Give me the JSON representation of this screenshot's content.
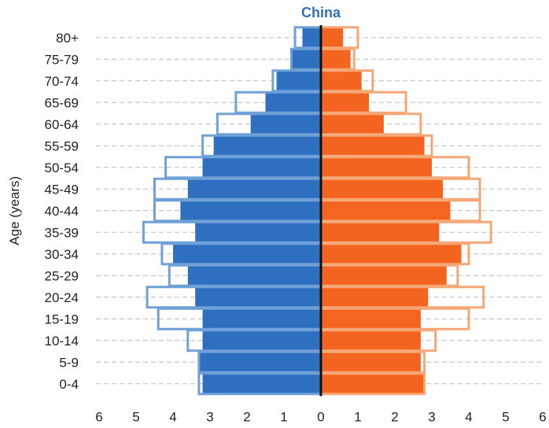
{
  "chart_data": {
    "type": "bar",
    "orientation": "horizontal-population-pyramid",
    "title": "China",
    "ylabel": "Age (years)",
    "categories": [
      "80+",
      "75-79",
      "70-74",
      "65-69",
      "60-64",
      "55-59",
      "50-54",
      "45-49",
      "40-44",
      "35-39",
      "30-34",
      "25-29",
      "20-24",
      "15-19",
      "10-14",
      "5-9",
      "0-4"
    ],
    "x_ticks": [
      "6",
      "5",
      "4",
      "3",
      "2",
      "1",
      "0",
      "1",
      "2",
      "3",
      "4",
      "5",
      "6"
    ],
    "xlim": [
      -6,
      6
    ],
    "grid": "horizontal dashed",
    "colors": {
      "male_fill": "#2f6fbf",
      "male_outline": "#6fa0d8",
      "female_fill": "#f2641f",
      "female_outline": "#f5a777",
      "title": "#2f6fbf",
      "grid": "#bbbbbb",
      "axis": "#111111"
    },
    "series": [
      {
        "side": "left",
        "style": "filled",
        "values": [
          0.5,
          0.8,
          1.2,
          1.5,
          1.9,
          2.9,
          3.2,
          3.6,
          3.8,
          3.4,
          4.0,
          3.6,
          3.4,
          3.2,
          3.2,
          3.3,
          3.2
        ]
      },
      {
        "side": "left",
        "style": "outline",
        "values": [
          0.7,
          0.8,
          1.3,
          2.3,
          2.8,
          3.2,
          4.2,
          4.5,
          4.5,
          4.8,
          4.3,
          4.1,
          4.7,
          4.4,
          3.6,
          3.3,
          3.3
        ]
      },
      {
        "side": "right",
        "style": "filled",
        "values": [
          0.6,
          0.8,
          1.1,
          1.3,
          1.7,
          2.8,
          3.0,
          3.3,
          3.5,
          3.2,
          3.8,
          3.4,
          2.9,
          2.7,
          2.7,
          2.7,
          2.8
        ]
      },
      {
        "side": "right",
        "style": "outline",
        "values": [
          1.0,
          0.9,
          1.4,
          2.3,
          2.7,
          3.0,
          4.0,
          4.3,
          4.3,
          4.6,
          4.0,
          3.7,
          4.4,
          4.0,
          3.1,
          2.8,
          2.8
        ]
      }
    ]
  }
}
